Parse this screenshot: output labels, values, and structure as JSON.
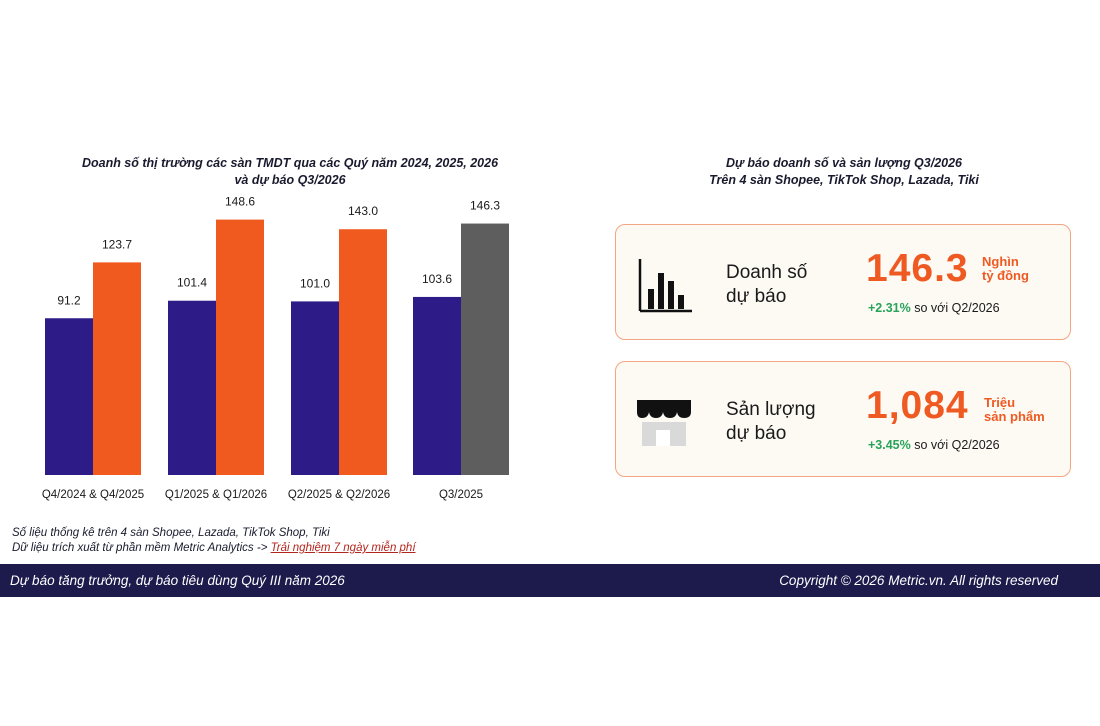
{
  "chart_data": {
    "type": "bar",
    "title_line1": "Doanh số thị trường các sàn TMDT qua các Quý năm 2024, 2025, 2026",
    "title_line2": "và dự báo Q3/2026",
    "categories": [
      "Q4/2024 & Q4/2025",
      "Q1/2025 & Q1/2026",
      "Q2/2025 & Q2/2026",
      "Q3/2025"
    ],
    "series": [
      {
        "values": [
          91.2,
          101.4,
          101.0,
          103.6
        ],
        "color": "#2d1b87"
      },
      {
        "values": [
          123.7,
          148.6,
          143.0,
          146.3
        ],
        "color": "#f05a1f",
        "forecast_color": "#5e5e5e"
      }
    ],
    "ylim": [
      0,
      160
    ],
    "grid": false,
    "legend": "none"
  },
  "notes": {
    "line1": "Số liệu thống kê trên 4 sàn Shopee, Lazada, TikTok Shop, Tiki",
    "line2_prefix": "Dữ liệu trích xuất từ phần mềm Metric Analytics -> ",
    "line2_link": "Trải nghiệm 7 ngày miễn phí"
  },
  "forecast": {
    "title_line1": "Dự báo doanh số và sản lượng Q3/2026",
    "title_line2": "Trên 4 sàn Shopee, TikTok Shop, Lazada, Tiki",
    "cards": [
      {
        "label_line1": "Doanh số",
        "label_line2": "dự báo",
        "icon": "bar-chart-icon",
        "value": "146.3",
        "unit_line1": "Nghìn",
        "unit_line2": "tỷ đồng",
        "change_pct": "+2.31%",
        "change_text": " so với Q2/2026"
      },
      {
        "label_line1": "Sản lượng",
        "label_line2": "dự báo",
        "icon": "store-icon",
        "value": "1,084",
        "unit_line1": "Triệu",
        "unit_line2": "sản phẩm",
        "change_pct": "+3.45%",
        "change_text": " so với Q2/2026"
      }
    ]
  },
  "footer": {
    "left": "Dự báo tăng trưởng, dự báo tiêu dùng Quý III năm 2026",
    "right": "Copyright © 2026 Metric.vn. All rights reserved"
  },
  "colors": {
    "accent": "#ef5a22",
    "navy": "#1d1a4c",
    "positive": "#27a35a",
    "card_border": "#f3a584"
  }
}
